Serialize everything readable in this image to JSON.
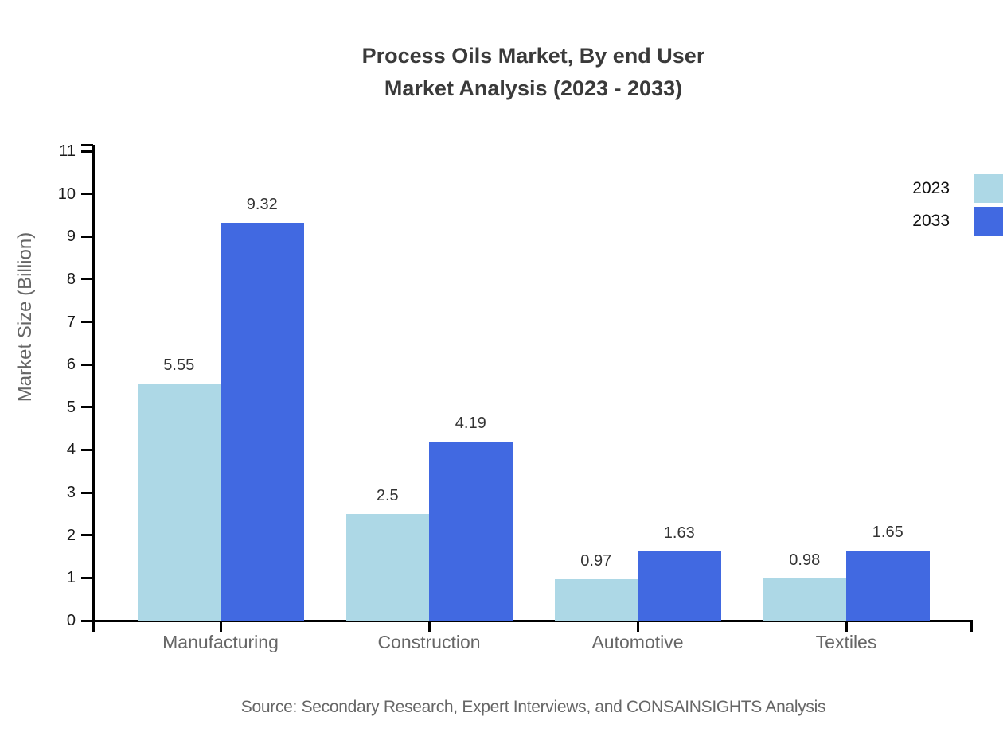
{
  "chart_data": {
    "type": "bar",
    "title_line1": "Process Oils Market, By end User",
    "title_line2": "Market Analysis (2023 - 2033)",
    "categories": [
      "Manufacturing",
      "Construction",
      "Automotive",
      "Textiles"
    ],
    "series": [
      {
        "name": "2023",
        "color": "#ADD8E6",
        "values": [
          5.55,
          2.5,
          0.97,
          0.98
        ]
      },
      {
        "name": "2033",
        "color": "#4169E1",
        "values": [
          9.32,
          4.19,
          1.63,
          1.65
        ]
      }
    ],
    "value_labels": [
      [
        "5.55",
        "2.5",
        "0.97",
        "0.98"
      ],
      [
        "9.32",
        "4.19",
        "1.63",
        "1.65"
      ]
    ],
    "xlabel": "",
    "ylabel": "Market Size (Billion)",
    "ylim": [
      0,
      11
    ],
    "yticks": [
      0,
      1,
      2,
      3,
      4,
      5,
      6,
      7,
      8,
      9,
      10,
      11
    ],
    "grid": false,
    "legend_position": "top-right",
    "source": "Source: Secondary Research, Expert Interviews, and CONSAINSIGHTS Analysis",
    "colors": {
      "series_2023": "#ADD8E6",
      "series_2033": "#4169E1",
      "title_text": "#3a3a3a",
      "axis": "#000000",
      "tick_label": "#1a1a1a",
      "category_label": "#666666",
      "value_label": "#333333",
      "axis_title": "#666666",
      "source_text": "#666666",
      "background": "#ffffff"
    }
  }
}
